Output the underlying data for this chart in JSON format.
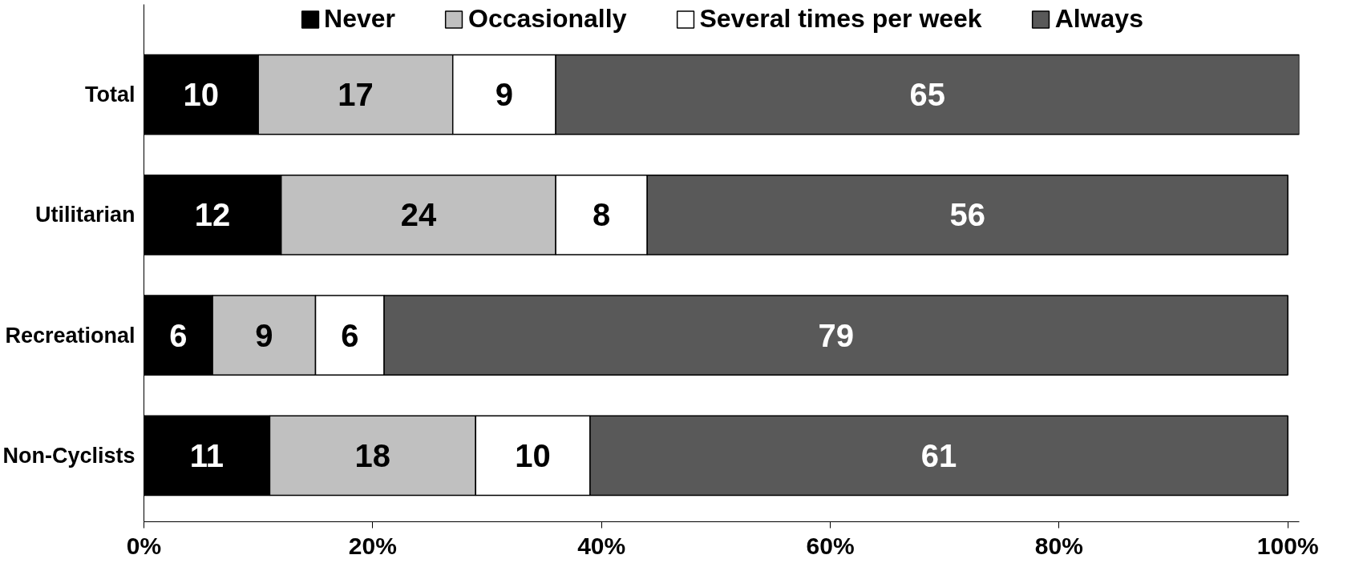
{
  "chart_data": {
    "type": "bar",
    "orientation": "horizontal",
    "stacked": true,
    "categories": [
      "Total",
      "Utilitarian",
      "Recreational",
      "Non-Cyclists"
    ],
    "series": [
      {
        "name": "Never",
        "color": "#000000",
        "values": [
          10,
          12,
          6,
          11
        ]
      },
      {
        "name": "Occasionally",
        "color": "#c0c0c0",
        "values": [
          17,
          24,
          9,
          18
        ]
      },
      {
        "name": "Several times per week",
        "color": "#ffffff",
        "values": [
          9,
          8,
          6,
          10
        ]
      },
      {
        "name": "Always",
        "color": "#595959",
        "values": [
          65,
          56,
          79,
          61
        ]
      }
    ],
    "xlim": [
      0,
      101
    ],
    "xticks": [
      {
        "value": 0,
        "label": "0%"
      },
      {
        "value": 20,
        "label": "20%"
      },
      {
        "value": 40,
        "label": "40%"
      },
      {
        "value": 60,
        "label": "60%"
      },
      {
        "value": 80,
        "label": "80%"
      },
      {
        "value": 100,
        "label": "100%"
      }
    ],
    "data_labels": true,
    "legend": "top",
    "grid": false
  }
}
